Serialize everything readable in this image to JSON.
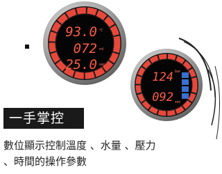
{
  "gauges": [
    {
      "readings": [
        {
          "value": "93.0",
          "unit": "℃"
        },
        {
          "value": "072",
          "unit": "ml"
        },
        {
          "value": "25.0",
          "unit": "sec"
        }
      ]
    },
    {
      "readings": [
        {
          "value": "124",
          "unit": "bar"
        },
        {
          "value": "092",
          "unit": "sec"
        }
      ]
    }
  ],
  "feature": {
    "title": "一手掌控",
    "description": [
      "數位顯示控制溫度 、水量 、壓力",
      "、時間的操作參數"
    ]
  }
}
